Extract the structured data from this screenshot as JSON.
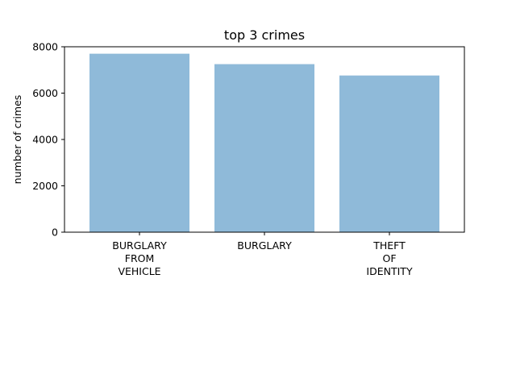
{
  "chart_data": {
    "type": "bar",
    "title": "top 3 crimes",
    "xlabel": "",
    "ylabel": "number of crimes",
    "categories": [
      "BURGLARY\nFROM\nVEHICLE",
      "BURGLARY",
      "THEFT\nOF\nIDENTITY"
    ],
    "values": [
      7700,
      7250,
      6760
    ],
    "ylim": [
      0,
      8000
    ],
    "yticks": [
      0,
      2000,
      4000,
      6000,
      8000
    ],
    "grid": false,
    "legend": "none",
    "bar_color": "#8fbad9"
  }
}
